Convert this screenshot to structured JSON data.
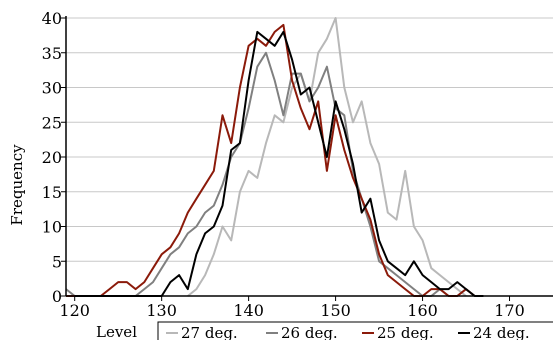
{
  "chart_data": {
    "type": "line",
    "ylabel": "Frequency",
    "xlabel": "Level",
    "xlim": [
      119,
      175
    ],
    "ylim": [
      0,
      40
    ],
    "x_ticks": [
      120,
      130,
      140,
      150,
      160,
      170
    ],
    "y_ticks": [
      0,
      5,
      10,
      15,
      20,
      25,
      30,
      35,
      40
    ],
    "grid": "horizontal",
    "legend_placement": "bottom",
    "series": [
      {
        "name": "27 deg.",
        "color": "#b8b8b8",
        "points": [
          [
            133,
            0
          ],
          [
            134,
            1
          ],
          [
            135,
            3
          ],
          [
            136,
            6
          ],
          [
            137,
            10
          ],
          [
            138,
            8
          ],
          [
            139,
            15
          ],
          [
            140,
            18
          ],
          [
            141,
            17
          ],
          [
            142,
            22
          ],
          [
            143,
            26
          ],
          [
            144,
            25
          ],
          [
            145,
            30
          ],
          [
            146,
            32
          ],
          [
            147,
            28
          ],
          [
            148,
            35
          ],
          [
            149,
            37
          ],
          [
            150,
            40
          ],
          [
            151,
            30
          ],
          [
            152,
            25
          ],
          [
            153,
            28
          ],
          [
            154,
            22
          ],
          [
            155,
            19
          ],
          [
            156,
            12
          ],
          [
            157,
            11
          ],
          [
            158,
            18
          ],
          [
            159,
            10
          ],
          [
            160,
            8
          ],
          [
            161,
            4
          ],
          [
            162,
            3
          ],
          [
            163,
            2
          ],
          [
            164,
            1
          ],
          [
            165,
            0
          ]
        ]
      },
      {
        "name": "26 deg.",
        "color": "#808080",
        "points": [
          [
            119,
            1
          ],
          [
            120,
            0
          ],
          [
            121,
            0
          ],
          [
            122,
            0
          ],
          [
            123,
            0
          ],
          [
            124,
            0
          ],
          [
            125,
            0
          ],
          [
            126,
            0
          ],
          [
            127,
            0
          ],
          [
            128,
            1
          ],
          [
            129,
            2
          ],
          [
            130,
            4
          ],
          [
            131,
            6
          ],
          [
            132,
            7
          ],
          [
            133,
            9
          ],
          [
            134,
            10
          ],
          [
            135,
            12
          ],
          [
            136,
            13
          ],
          [
            137,
            16
          ],
          [
            138,
            20
          ],
          [
            139,
            22
          ],
          [
            140,
            27
          ],
          [
            141,
            33
          ],
          [
            142,
            35
          ],
          [
            143,
            31
          ],
          [
            144,
            26
          ],
          [
            145,
            32
          ],
          [
            146,
            32
          ],
          [
            147,
            28
          ],
          [
            148,
            30
          ],
          [
            149,
            33
          ],
          [
            150,
            27
          ],
          [
            151,
            26
          ],
          [
            152,
            18
          ],
          [
            153,
            14
          ],
          [
            154,
            10
          ],
          [
            155,
            5
          ],
          [
            156,
            4
          ],
          [
            157,
            3
          ],
          [
            158,
            2
          ],
          [
            159,
            1
          ],
          [
            160,
            0
          ],
          [
            161,
            0
          ],
          [
            162,
            1
          ],
          [
            163,
            0
          ],
          [
            164,
            0
          ],
          [
            165,
            1
          ],
          [
            166,
            0
          ]
        ]
      },
      {
        "name": "25 deg.",
        "color": "#8b1a0a",
        "points": [
          [
            119,
            0
          ],
          [
            120,
            0
          ],
          [
            121,
            0
          ],
          [
            122,
            0
          ],
          [
            123,
            0
          ],
          [
            124,
            1
          ],
          [
            125,
            2
          ],
          [
            126,
            2
          ],
          [
            127,
            1
          ],
          [
            128,
            2
          ],
          [
            129,
            4
          ],
          [
            130,
            6
          ],
          [
            131,
            7
          ],
          [
            132,
            9
          ],
          [
            133,
            12
          ],
          [
            134,
            14
          ],
          [
            135,
            16
          ],
          [
            136,
            18
          ],
          [
            137,
            26
          ],
          [
            138,
            22
          ],
          [
            139,
            30
          ],
          [
            140,
            36
          ],
          [
            141,
            37
          ],
          [
            142,
            36
          ],
          [
            143,
            38
          ],
          [
            144,
            39
          ],
          [
            145,
            31
          ],
          [
            146,
            27
          ],
          [
            147,
            24
          ],
          [
            148,
            28
          ],
          [
            149,
            18
          ],
          [
            150,
            26
          ],
          [
            151,
            21
          ],
          [
            152,
            17
          ],
          [
            153,
            14
          ],
          [
            154,
            11
          ],
          [
            155,
            6
          ],
          [
            156,
            3
          ],
          [
            157,
            2
          ],
          [
            158,
            1
          ],
          [
            159,
            0
          ],
          [
            160,
            0
          ],
          [
            161,
            1
          ],
          [
            162,
            1
          ],
          [
            163,
            0
          ],
          [
            164,
            0
          ],
          [
            165,
            1
          ],
          [
            166,
            0
          ]
        ]
      },
      {
        "name": "24 deg.",
        "color": "#000000",
        "points": [
          [
            120,
            0
          ],
          [
            121,
            0
          ],
          [
            122,
            0
          ],
          [
            123,
            0
          ],
          [
            124,
            0
          ],
          [
            125,
            0
          ],
          [
            126,
            0
          ],
          [
            127,
            0
          ],
          [
            128,
            0
          ],
          [
            129,
            0
          ],
          [
            130,
            0
          ],
          [
            131,
            2
          ],
          [
            132,
            3
          ],
          [
            133,
            1
          ],
          [
            134,
            6
          ],
          [
            135,
            9
          ],
          [
            136,
            10
          ],
          [
            137,
            13
          ],
          [
            138,
            21
          ],
          [
            139,
            22
          ],
          [
            140,
            31
          ],
          [
            141,
            38
          ],
          [
            142,
            37
          ],
          [
            143,
            36
          ],
          [
            144,
            38
          ],
          [
            145,
            34
          ],
          [
            146,
            29
          ],
          [
            147,
            30
          ],
          [
            148,
            25
          ],
          [
            149,
            20
          ],
          [
            150,
            28
          ],
          [
            151,
            24
          ],
          [
            152,
            19
          ],
          [
            153,
            12
          ],
          [
            154,
            14
          ],
          [
            155,
            8
          ],
          [
            156,
            5
          ],
          [
            157,
            4
          ],
          [
            158,
            3
          ],
          [
            159,
            5
          ],
          [
            160,
            3
          ],
          [
            161,
            2
          ],
          [
            162,
            1
          ],
          [
            163,
            1
          ],
          [
            164,
            2
          ],
          [
            165,
            1
          ],
          [
            166,
            0
          ],
          [
            167,
            0
          ]
        ]
      }
    ]
  }
}
